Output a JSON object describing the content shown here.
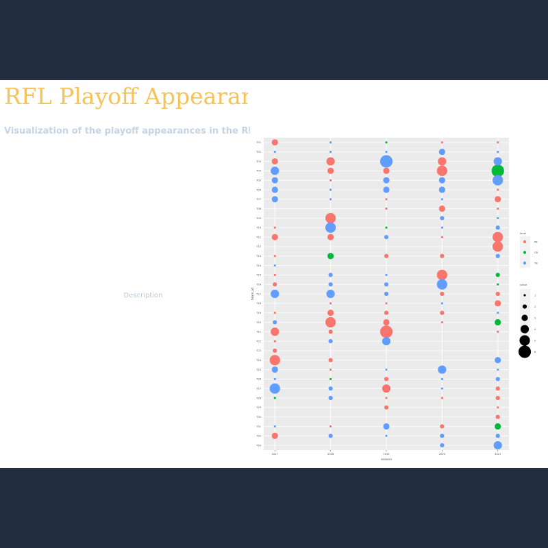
{
  "header": {
    "title": "RFL Playoff Appearanc",
    "subtitle": "Visualization of the playoff appearances in the RFL bet"
  },
  "sidebar": {
    "description": "Description"
  },
  "chart_data": {
    "type": "scatter",
    "xlabel": "season",
    "ylabel": "team_id",
    "xlim": [
      2016.8,
      2021.2
    ],
    "xticks": [
      2017,
      2018,
      2019,
      2020,
      2021
    ],
    "categories": [
      "T01",
      "T02",
      "T03",
      "T04",
      "T05",
      "T06",
      "T07",
      "T08",
      "T09",
      "T10",
      "T11",
      "T12",
      "T13",
      "T14",
      "T15",
      "T16",
      "T17",
      "T18",
      "T19",
      "T20",
      "T21",
      "T22",
      "T23",
      "T24",
      "T25",
      "T26",
      "T27",
      "T28",
      "T29",
      "T30",
      "T31",
      "T32",
      "T33"
    ],
    "grid": true,
    "color_legend_title": "level",
    "size_legend_title": "value",
    "size_legend": [
      1,
      2,
      3,
      4,
      5,
      6
    ],
    "series": [
      {
        "name": "PB",
        "color": "#F8766D",
        "x": [
          2017,
          2020,
          2021,
          2017,
          2018,
          2020,
          2018,
          2019,
          2020,
          2018,
          2021,
          2019,
          2021,
          2019,
          2020,
          2021,
          2018,
          2017,
          2017,
          2018,
          2020,
          2021,
          2021,
          2017,
          2019,
          2020,
          2017,
          2020,
          2017,
          2020,
          2021,
          2018,
          2019,
          2021,
          2017,
          2018,
          2019,
          2020,
          2018,
          2019,
          2020,
          2017,
          2018,
          2019,
          2021,
          2017,
          2017,
          2017,
          2018,
          2018,
          2019,
          2019,
          2021,
          2019,
          2020,
          2021,
          2019,
          2021,
          2021,
          2018,
          2020,
          2017
        ],
        "y": [
          "T01",
          "T01",
          "T01",
          "T03",
          "T03",
          "T03",
          "T04",
          "T04",
          "T04",
          "T05",
          "T06",
          "T07",
          "T07",
          "T08",
          "T08",
          "T08",
          "T09",
          "T10",
          "T11",
          "T11",
          "T11",
          "T11",
          "T12",
          "T13",
          "T13",
          "T13",
          "T15",
          "T15",
          "T16",
          "T17",
          "T17",
          "T18",
          "T18",
          "T18",
          "T19",
          "T19",
          "T19",
          "T19",
          "T20",
          "T20",
          "T20",
          "T21",
          "T21",
          "T21",
          "T21",
          "T22",
          "T23",
          "T24",
          "T24",
          "T25",
          "T26",
          "T27",
          "T27",
          "T28",
          "T28",
          "T28",
          "T29",
          "T29",
          "T30",
          "T31",
          "T31",
          "T32"
        ],
        "size": [
          3,
          1,
          1,
          3,
          4,
          4,
          3,
          3,
          5,
          1,
          1,
          1,
          3,
          1,
          3,
          1,
          5,
          1,
          3,
          3,
          1,
          5,
          5,
          1,
          2,
          2,
          1,
          5,
          2,
          2,
          2,
          1,
          1,
          3,
          1,
          3,
          2,
          2,
          5,
          3,
          1,
          4,
          2,
          6,
          1,
          1,
          2,
          5,
          2,
          1,
          2,
          4,
          2,
          1,
          1,
          2,
          2,
          1,
          2,
          1,
          2,
          3
        ]
      },
      {
        "name": "CB",
        "color": "#00BA38",
        "x": [
          2019,
          2021,
          2019,
          2018,
          2021,
          2021,
          2021,
          2018,
          2017,
          2021
        ],
        "y": [
          "T01",
          "T04",
          "T10",
          "T13",
          "T15",
          "T16",
          "T20",
          "T26",
          "T28",
          "T31"
        ],
        "size": [
          1,
          6,
          1,
          3,
          2,
          1,
          3,
          1,
          1,
          3
        ]
      },
      {
        "name": "TB",
        "color": "#619CFF",
        "x": [
          2018,
          2017,
          2018,
          2019,
          2020,
          2021,
          2019,
          2021,
          2017,
          2017,
          2019,
          2020,
          2021,
          2017,
          2018,
          2019,
          2020,
          2017,
          2018,
          2020,
          2020,
          2021,
          2018,
          2020,
          2021,
          2019,
          2021,
          2017,
          2018,
          2019,
          2018,
          2019,
          2020,
          2017,
          2018,
          2019,
          2020,
          2021,
          2017,
          2018,
          2019,
          2021,
          2017,
          2019,
          2020,
          2021,
          2017,
          2020,
          2021,
          2017,
          2018,
          2020,
          2018,
          2017,
          2019,
          2018,
          2019,
          2020,
          2021,
          2020,
          2021
        ],
        "y": [
          "T01",
          "T02",
          "T02",
          "T02",
          "T02",
          "T02",
          "T03",
          "T03",
          "T04",
          "T05",
          "T05",
          "T05",
          "T05",
          "T06",
          "T06",
          "T06",
          "T06",
          "T07",
          "T07",
          "T07",
          "T09",
          "T09",
          "T10",
          "T10",
          "T10",
          "T11",
          "T13",
          "T14",
          "T15",
          "T15",
          "T16",
          "T16",
          "T16",
          "T17",
          "T17",
          "T17",
          "T18",
          "T19",
          "T20",
          "T22",
          "T22",
          "T24",
          "T25",
          "T25",
          "T25",
          "T25",
          "T26",
          "T26",
          "T26",
          "T27",
          "T27",
          "T27",
          "T28",
          "T31",
          "T31",
          "T32",
          "T32",
          "T32",
          "T32",
          "T33",
          "T33"
        ],
        "size": [
          1,
          1,
          1,
          1,
          3,
          1,
          6,
          4,
          4,
          3,
          3,
          3,
          5,
          3,
          1,
          3,
          3,
          3,
          1,
          1,
          2,
          1,
          5,
          1,
          2,
          2,
          2,
          1,
          2,
          1,
          2,
          2,
          5,
          4,
          4,
          2,
          1,
          1,
          2,
          2,
          4,
          3,
          3,
          1,
          4,
          1,
          1,
          1,
          2,
          5,
          2,
          1,
          2,
          1,
          3,
          2,
          1,
          2,
          2,
          2,
          4
        ]
      }
    ]
  }
}
